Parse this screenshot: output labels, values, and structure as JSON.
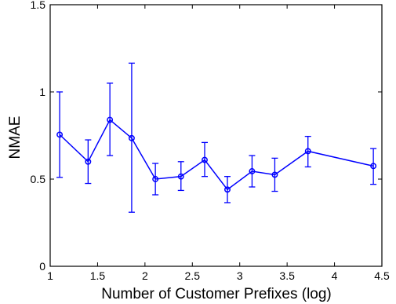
{
  "chart_data": {
    "type": "line",
    "title": "",
    "xlabel": "Number of Customer Prefixes (log)",
    "ylabel": "NMAE",
    "xlim": [
      1,
      4.5
    ],
    "ylim": [
      0,
      1.5
    ],
    "x_ticks": [
      1,
      1.5,
      2,
      2.5,
      3,
      3.5,
      4,
      4.5
    ],
    "x_tick_labels": [
      "1",
      "1.5",
      "2",
      "2.5",
      "3",
      "3.5",
      "4",
      "4.5"
    ],
    "y_ticks": [
      0,
      0.5,
      1,
      1.5
    ],
    "y_tick_labels": [
      "0",
      "0.5",
      "1",
      "1.5"
    ],
    "grid": false,
    "legend": false,
    "series": [
      {
        "color": "#0000ff",
        "marker": "circle",
        "error_bars": true,
        "x": [
          1.1,
          1.4,
          1.63,
          1.86,
          2.11,
          2.38,
          2.63,
          2.87,
          3.13,
          3.37,
          3.72,
          4.41
        ],
        "y": [
          0.755,
          0.6,
          0.84,
          0.735,
          0.5,
          0.515,
          0.61,
          0.44,
          0.545,
          0.525,
          0.66,
          0.575
        ],
        "err_low": [
          0.51,
          0.475,
          0.635,
          0.31,
          0.41,
          0.435,
          0.515,
          0.365,
          0.455,
          0.43,
          0.57,
          0.47
        ],
        "err_high": [
          1.0,
          0.725,
          1.05,
          1.165,
          0.59,
          0.6,
          0.71,
          0.515,
          0.635,
          0.62,
          0.745,
          0.675
        ]
      }
    ]
  }
}
